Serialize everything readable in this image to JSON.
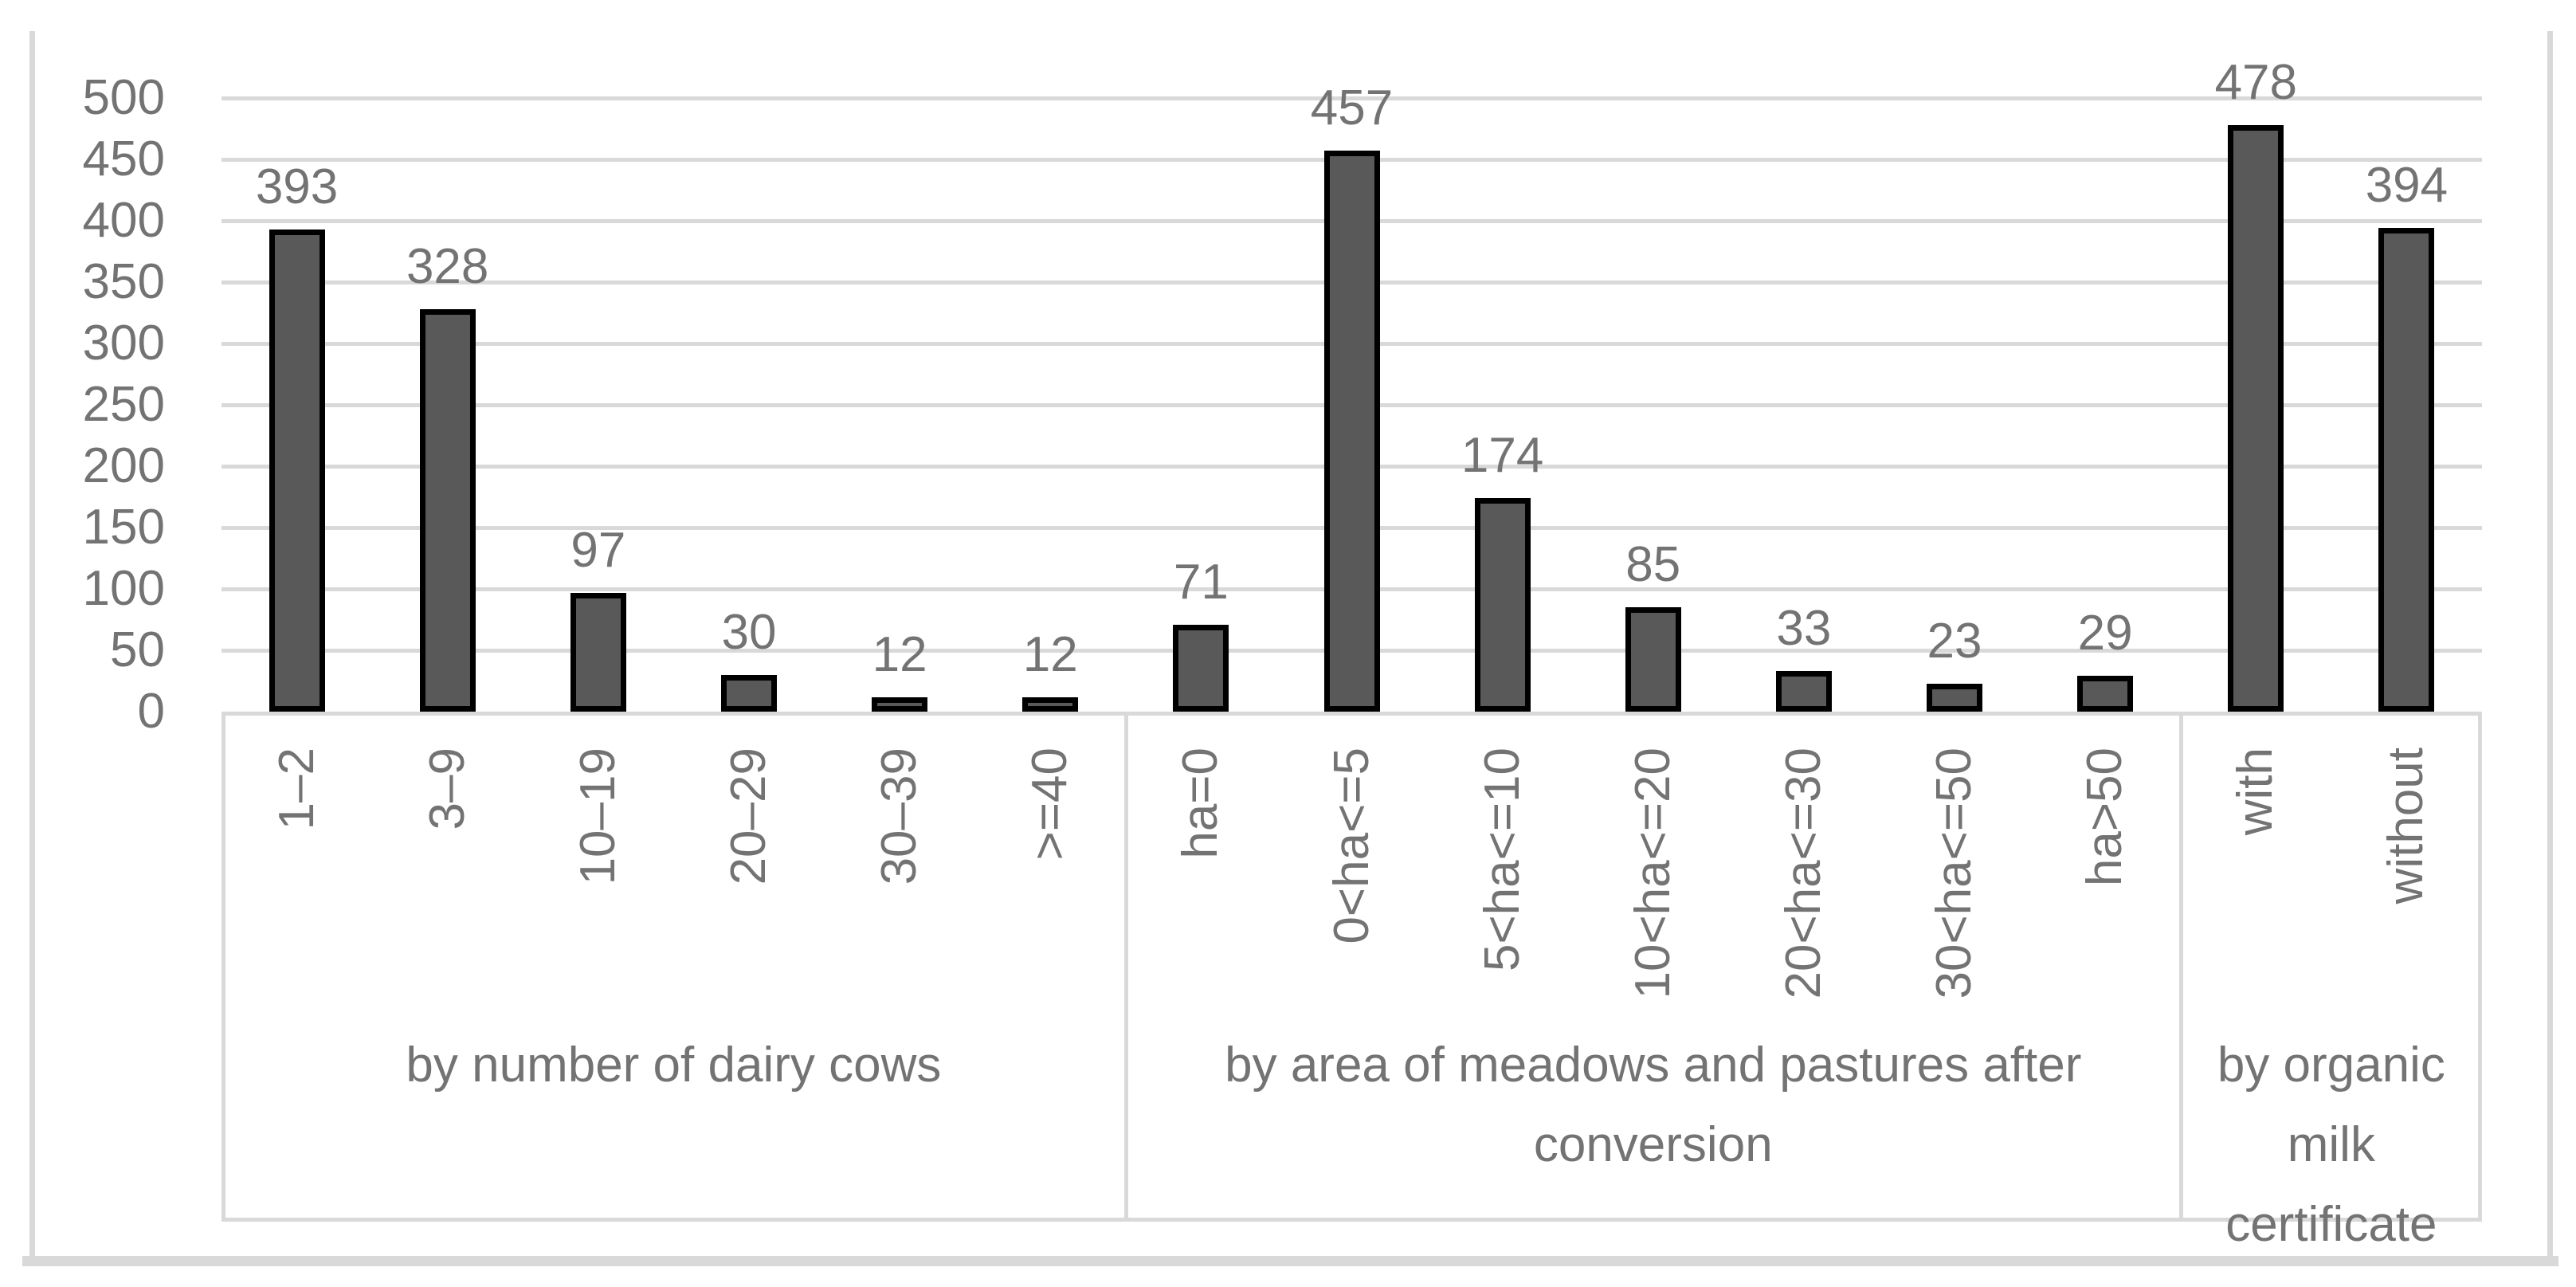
{
  "chart_data": {
    "type": "bar",
    "title": "",
    "xlabel": "",
    "ylabel": "",
    "ylim": [
      0,
      500
    ],
    "ytick_step": 50,
    "yticks": [
      500,
      450,
      400,
      350,
      300,
      250,
      200,
      150,
      100,
      50,
      0
    ],
    "grid": "horizontal",
    "legend": "none",
    "data_labels_shown": true,
    "groups": [
      {
        "label": "by number of dairy cows",
        "categories": [
          "1–2",
          "3–9",
          "10–19",
          "20–29",
          "30–39",
          ">=40"
        ],
        "values": [
          393,
          328,
          97,
          30,
          12,
          12
        ]
      },
      {
        "label": "by area of meadows and pastures after conversion",
        "categories": [
          "ha=0",
          "0<ha<=5",
          "5<ha<=10",
          "10<ha<=20",
          "20<ha<=30",
          "30<ha<=50",
          "ha>50"
        ],
        "values": [
          71,
          457,
          174,
          85,
          33,
          23,
          29
        ]
      },
      {
        "label": "by organic milk certificate",
        "categories": [
          "with",
          "without"
        ],
        "values": [
          478,
          394
        ]
      }
    ],
    "style": {
      "bar_fill": "#595959",
      "bar_border": "#000000",
      "gridline_color": "#d9d9d9",
      "axis_box_color": "#d9d9d9",
      "text_color": "#737373",
      "background": "#ffffff"
    }
  }
}
